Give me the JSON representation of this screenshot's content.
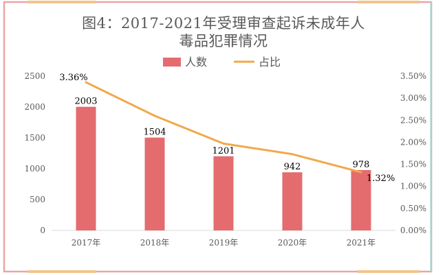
{
  "chart_data": {
    "type": "bar",
    "title_lines": [
      "图4：2017-2021年受理审查起诉未成年人",
      "毒品犯罪情况"
    ],
    "categories": [
      "2017年",
      "2018年",
      "2019年",
      "2020年",
      "2021年"
    ],
    "series": [
      {
        "name": "人数",
        "type": "bar",
        "axis": "left",
        "color": "#e46c6e",
        "values": [
          2003,
          1504,
          1201,
          942,
          978
        ],
        "value_labels": [
          "2003",
          "1504",
          "1201",
          "942",
          "978"
        ]
      },
      {
        "name": "占比",
        "type": "line",
        "axis": "right",
        "color": "#f0a94a",
        "values": [
          3.36,
          2.6,
          1.97,
          1.73,
          1.32
        ],
        "point_labels": [
          "3.36%",
          "",
          "",
          "",
          "1.32%"
        ]
      }
    ],
    "left_axis": {
      "min": 0,
      "max": 2500,
      "ticks": [
        0,
        500,
        1000,
        1500,
        2000,
        2500
      ],
      "tick_labels": [
        "0",
        "500",
        "1000",
        "1500",
        "2000",
        "2500"
      ]
    },
    "right_axis": {
      "min": 0,
      "max": 3.5,
      "ticks": [
        0,
        0.5,
        1,
        1.5,
        2,
        2.5,
        3,
        3.5
      ],
      "tick_labels": [
        "0.00%",
        "0.50%",
        "1.00%",
        "1.50%",
        "2.00%",
        "2.50%",
        "3.00%",
        "3.50%"
      ]
    },
    "legend_position": "top-center",
    "grid": false
  },
  "frame": {
    "border_color": "#e9a4a6",
    "accent_color": "#f2c48d",
    "right_border_color": "#9fd4cc"
  }
}
